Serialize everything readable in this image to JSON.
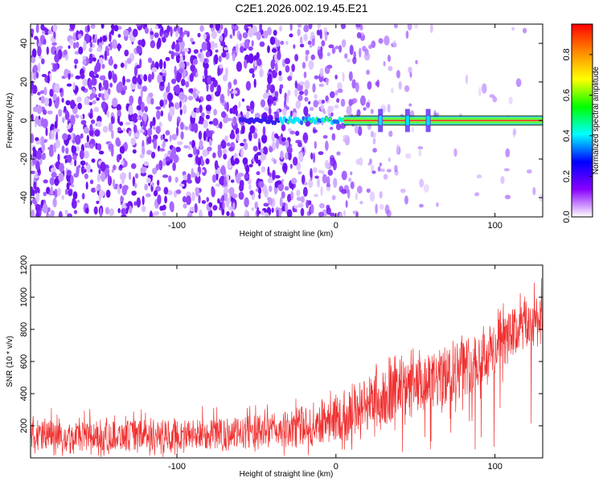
{
  "figure_title": "C2E1.2026.002.19.45.E21",
  "chart_data": [
    {
      "type": "heatmap",
      "xlabel": "Height of straight line (km)",
      "ylabel": "Frequency (Hz)",
      "xlim": [
        -192,
        130
      ],
      "ylim": [
        -50,
        50
      ],
      "x_ticks": [
        -100,
        0,
        100
      ],
      "y_ticks": [
        -40,
        -20,
        0,
        20,
        40
      ],
      "colorbar": {
        "label": "Normalized spectral amplitude",
        "range": [
          0,
          0.95
        ],
        "ticks": [
          0.0,
          0.2,
          0.4,
          0.6,
          0.8
        ],
        "colormap": [
          "#ffffff",
          "#8800ff",
          "#0000ff",
          "#00ffff",
          "#00ff00",
          "#ffff00",
          "#ff8800",
          "#ff0000"
        ]
      },
      "signal": {
        "frequency": 0,
        "onset_height": -60,
        "band_halfwidth_hz": 2,
        "burst_heights": [
          28,
          45,
          58
        ]
      },
      "noise_fade_height": 10
    },
    {
      "type": "line",
      "xlabel": "Height of straight line (km)",
      "ylabel": "SNR (10 * v/v)",
      "xlim": [
        -192,
        130
      ],
      "ylim": [
        0,
        1200
      ],
      "x_ticks": [
        -100,
        0,
        100
      ],
      "y_ticks": [
        200,
        400,
        600,
        800,
        1000,
        1200
      ],
      "series_color": "#f03030",
      "envelope": {
        "x": [
          -192,
          -150,
          -100,
          -60,
          -30,
          0,
          20,
          40,
          60,
          80,
          100,
          115,
          130
        ],
        "lower": [
          45,
          45,
          50,
          55,
          65,
          100,
          170,
          220,
          280,
          380,
          500,
          650,
          700
        ],
        "upper": [
          230,
          230,
          240,
          250,
          290,
          400,
          520,
          570,
          650,
          750,
          850,
          950,
          1050
        ]
      }
    }
  ]
}
